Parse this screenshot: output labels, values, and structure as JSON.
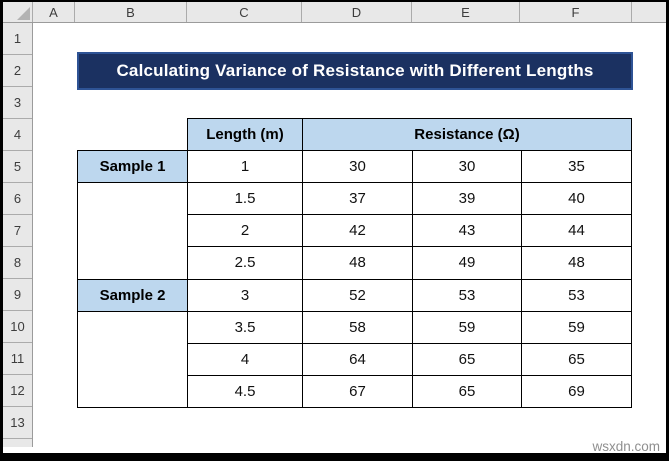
{
  "sheet": {
    "column_headers": [
      "A",
      "B",
      "C",
      "D",
      "E",
      "F"
    ],
    "row_numbers": [
      "1",
      "2",
      "3",
      "4",
      "5",
      "6",
      "7",
      "8",
      "9",
      "10",
      "11",
      "12",
      "13"
    ]
  },
  "title_banner": {
    "text": "Calculating Variance of Resistance with Different Lengths",
    "bg_color": "#1B3161",
    "border_color": "#2E5395",
    "text_color": "#FFFFFF"
  },
  "table": {
    "length_header": "Length (m)",
    "resistance_header": "Resistance (Ω)",
    "header_fill": "#BDD7EE",
    "groups": [
      {
        "label": "Sample 1",
        "rows": [
          [
            "1",
            "30",
            "30",
            "35"
          ],
          [
            "1.5",
            "37",
            "39",
            "40"
          ],
          [
            "2",
            "42",
            "43",
            "44"
          ],
          [
            "2.5",
            "48",
            "49",
            "48"
          ]
        ]
      },
      {
        "label": "Sample 2",
        "rows": [
          [
            "3",
            "52",
            "53",
            "53"
          ],
          [
            "3.5",
            "58",
            "59",
            "59"
          ],
          [
            "4",
            "64",
            "65",
            "65"
          ],
          [
            "4.5",
            "67",
            "65",
            "69"
          ]
        ]
      }
    ]
  },
  "watermark": "wsxdn.com"
}
